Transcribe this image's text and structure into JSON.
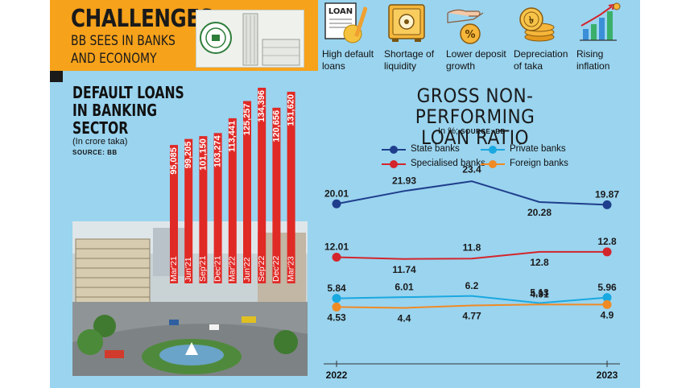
{
  "header": {
    "title": "CHALLENGES",
    "subtitle_line1": "BB SEES IN BANKS",
    "subtitle_line2": "AND ECONOMY"
  },
  "challenges": [
    {
      "label_line1": "High default",
      "label_line2": "loans",
      "icon": "loan-document-icon",
      "icon_text": "LOAN"
    },
    {
      "label_line1": "Shortage of",
      "label_line2": "liquidity",
      "icon": "safe-vault-icon"
    },
    {
      "label_line1": "Lower deposit",
      "label_line2": "growth",
      "icon": "hand-coin-icon"
    },
    {
      "label_line1": "Depreciation",
      "label_line2": "of taka",
      "icon": "taka-coins-icon"
    },
    {
      "label_line1": "Rising",
      "label_line2": "inflation",
      "icon": "rising-bars-icon"
    }
  ],
  "colors": {
    "panel": "#9ad4ef",
    "header": "#f7a21b",
    "bar": "#e02a26",
    "state_banks": "#1f3e8c",
    "specialised_banks": "#d4252c",
    "private_banks": "#1aa8e0",
    "foreign_banks": "#f08a24"
  },
  "chart_data": [
    {
      "type": "bar",
      "title_line1": "DEFAULT LOANS",
      "title_line2": "IN BANKING",
      "title_line3": "SECTOR",
      "unit": "(In crore taka)",
      "source": "SOURCE: BB",
      "categories": [
        "Mar'21",
        "Jun'21",
        "Sep'21",
        "Dec'21",
        "Mar'22",
        "Jun'22",
        "Sep'22",
        "Dec'22",
        "Mar'23"
      ],
      "values": [
        95085,
        99205,
        101150,
        103274,
        113441,
        125257,
        134396,
        120656,
        131620
      ],
      "value_labels": [
        "95,085",
        "99,205",
        "101,150",
        "103,274",
        "113,441",
        "125,257",
        "134,396",
        "120,656",
        "131,620"
      ]
    },
    {
      "type": "line",
      "title_line1": "GROSS NON-PERFORMING",
      "title_line2": "LOAN RATIO",
      "unit": "In %;",
      "source": "SOURCE: BB",
      "x_start_label": "2022",
      "x_end_label": "2023",
      "series": [
        {
          "name": "State banks",
          "key": "state_banks",
          "values": [
            20.01,
            21.93,
            23.4,
            20.28,
            19.87
          ],
          "labels": [
            "20.01",
            "21.93",
            "23.4",
            "20.28",
            "19.87"
          ]
        },
        {
          "name": "Specialised banks",
          "key": "specialised_banks",
          "values": [
            12.01,
            11.74,
            11.8,
            12.8,
            12.8
          ],
          "labels": [
            "12.01",
            "11.74",
            "11.8",
            "12.8",
            "12.8"
          ]
        },
        {
          "name": "Private banks",
          "key": "private_banks",
          "values": [
            5.84,
            6.01,
            6.2,
            5.13,
            5.96
          ],
          "labels": [
            "5.84",
            "6.01",
            "6.2",
            "5.13",
            "5.96"
          ]
        },
        {
          "name": "Foreign banks",
          "key": "foreign_banks",
          "values": [
            4.53,
            4.4,
            4.77,
            4.91,
            4.9
          ],
          "labels": [
            "4.53",
            "4.4",
            "4.77",
            "4.91",
            "4.9"
          ]
        }
      ]
    }
  ]
}
